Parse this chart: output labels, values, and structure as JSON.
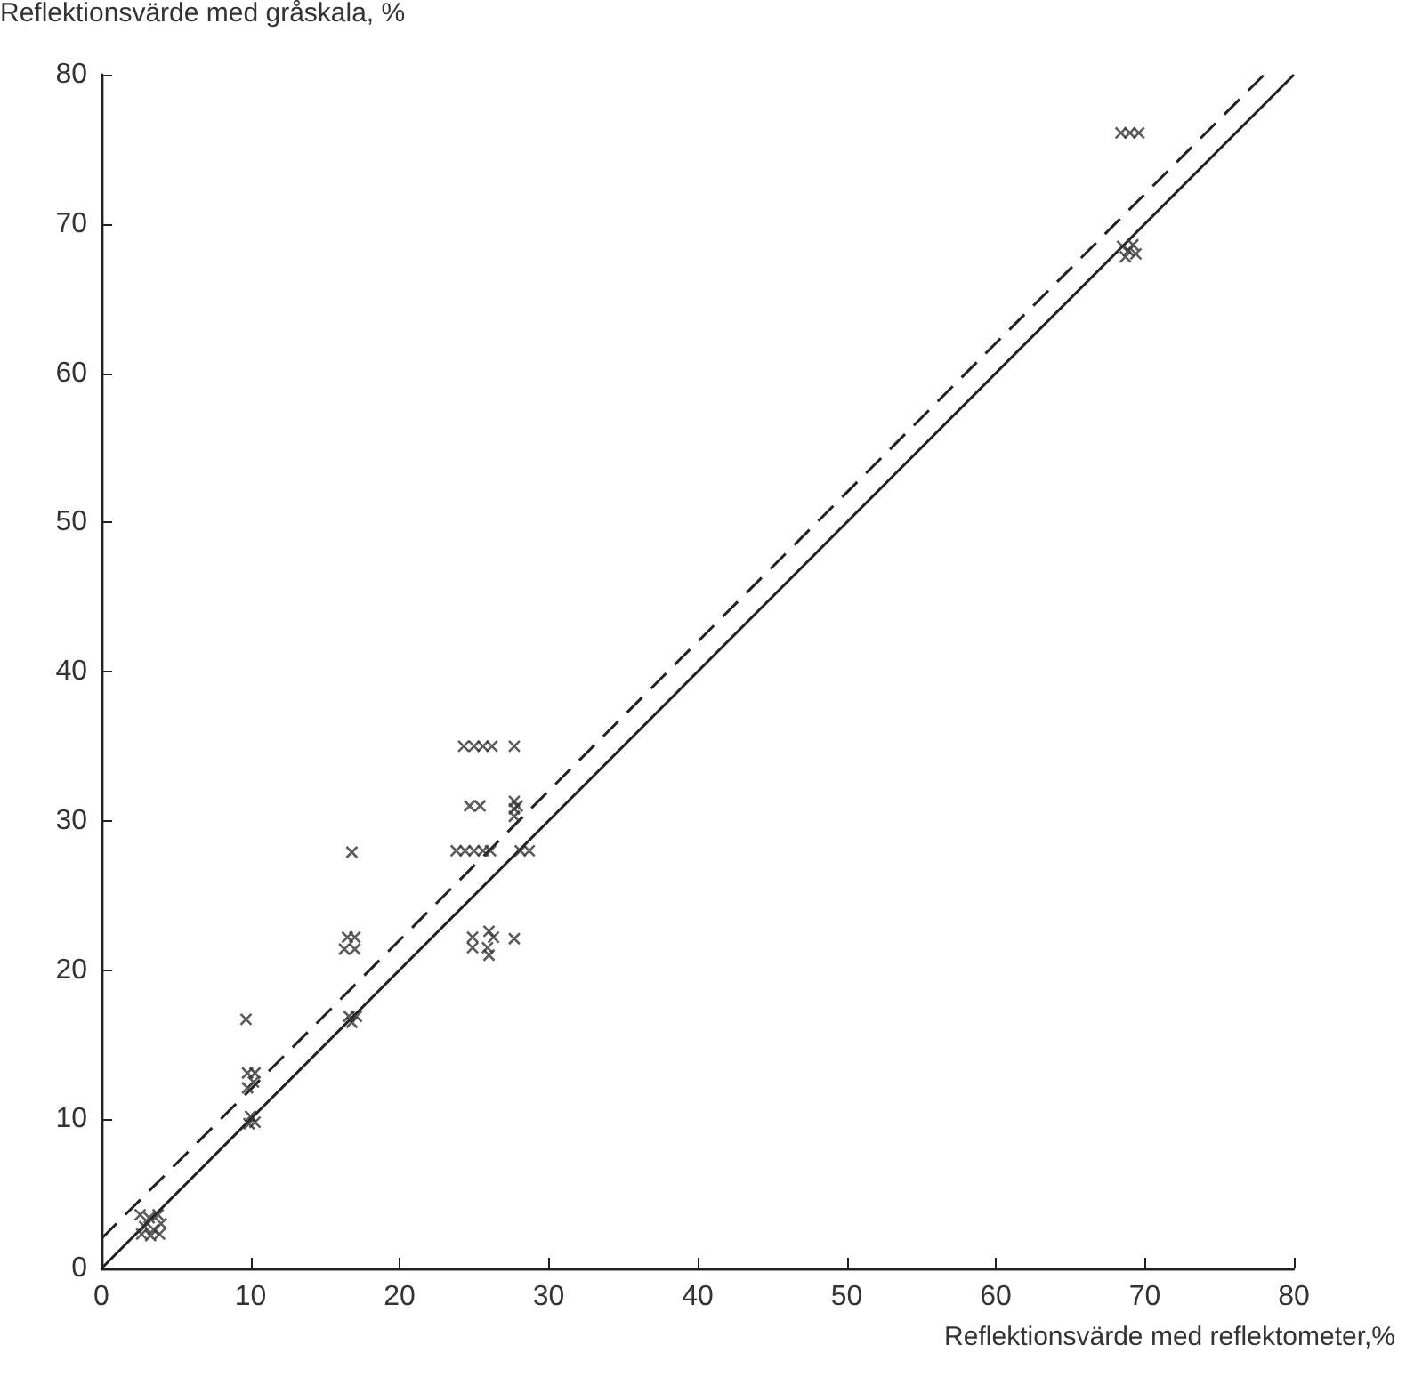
{
  "chart_data": {
    "type": "scatter",
    "xlabel": "Reflektionsvärde med reflektometer,%",
    "ylabel": "Reflektionsvärde med gråskala, %",
    "xlim": [
      0,
      80
    ],
    "ylim": [
      0,
      80
    ],
    "xticks": [
      0,
      10,
      20,
      30,
      40,
      50,
      60,
      70,
      80
    ],
    "yticks": [
      0,
      10,
      20,
      30,
      40,
      50,
      60,
      70,
      80
    ],
    "grid": false,
    "series": [
      {
        "marker": "cross",
        "color": "#333333",
        "x": [
          2.6,
          3.2,
          3.8,
          2.9,
          3.5,
          4.0,
          2.7,
          3.3,
          3.9,
          10.0,
          10.3,
          9.9,
          9.8,
          10.3,
          9.8,
          10.2,
          9.7,
          16.6,
          17.1,
          16.8,
          16.5,
          17.0,
          16.3,
          17.0,
          16.8,
          24.3,
          25.0,
          25.6,
          26.2,
          27.7,
          24.7,
          25.4,
          27.7,
          27.7,
          27.7,
          27.9,
          23.8,
          24.4,
          25.0,
          25.6,
          26.1,
          28.1,
          28.7,
          24.9,
          24.9,
          26.0,
          26.3,
          25.9,
          26.0,
          27.7,
          68.4,
          69.0,
          69.6,
          68.5,
          69.2,
          68.7,
          69.4,
          68.9
        ],
        "values": [
          3.6,
          3.4,
          3.6,
          2.8,
          2.6,
          3.0,
          2.3,
          2.2,
          2.3,
          10.2,
          9.8,
          9.7,
          13.1,
          13.1,
          12.1,
          12.5,
          16.7,
          16.9,
          16.9,
          16.5,
          22.2,
          22.2,
          21.4,
          21.4,
          27.9,
          35.0,
          35.0,
          35.0,
          35.0,
          35.0,
          31.0,
          31.0,
          31.3,
          30.8,
          30.3,
          31.0,
          28.0,
          28.0,
          28.0,
          28.0,
          28.0,
          28.0,
          28.0,
          22.2,
          21.5,
          22.6,
          22.2,
          21.5,
          21.0,
          22.1,
          76.1,
          76.1,
          76.1,
          68.5,
          68.6,
          67.8,
          68.0,
          68.2
        ]
      },
      {
        "type": "line",
        "color": "#222222",
        "line_style": "solid",
        "x": [
          0,
          80
        ],
        "values": [
          0,
          80
        ]
      },
      {
        "type": "line",
        "color": "#222222",
        "line_style": "dashed",
        "x": [
          0,
          78
        ],
        "values": [
          2,
          80
        ]
      }
    ]
  }
}
